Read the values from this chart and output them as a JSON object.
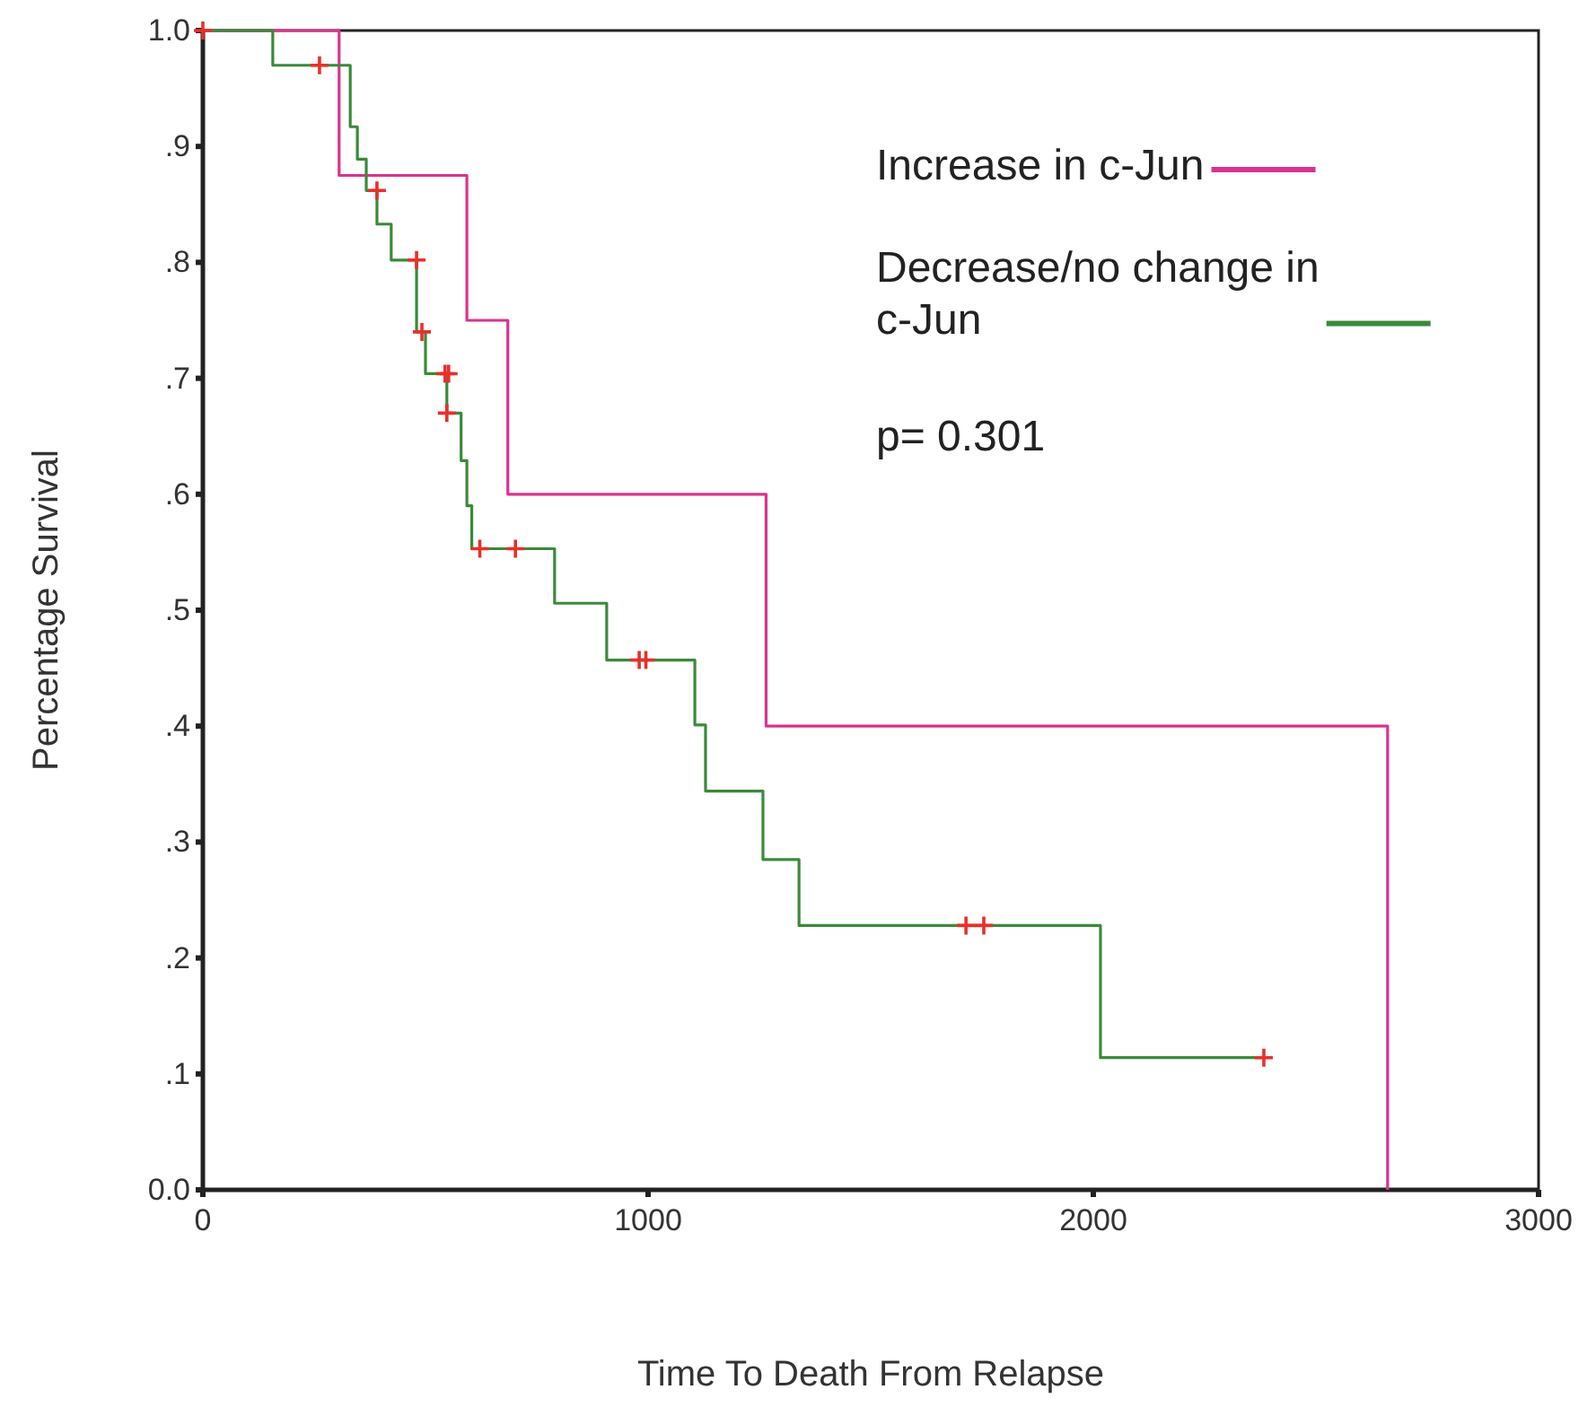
{
  "chart_data": {
    "type": "step",
    "xlabel": "Time To Death From Relapse",
    "ylabel": "Percentage Survival",
    "xlim": [
      0,
      3000
    ],
    "xticks": [
      0,
      1000,
      2000,
      3000
    ],
    "ylim": [
      0,
      1
    ],
    "yticks": [
      {
        "value": 0,
        "label": "0.0"
      },
      {
        "value": 0.1,
        "label": ".1"
      },
      {
        "value": 0.2,
        "label": ".2"
      },
      {
        "value": 0.3,
        "label": ".3"
      },
      {
        "value": 0.4,
        "label": ".4"
      },
      {
        "value": 0.5,
        "label": ".5"
      },
      {
        "value": 0.6,
        "label": ".6"
      },
      {
        "value": 0.7,
        "label": ".7"
      },
      {
        "value": 0.8,
        "label": ".8"
      },
      {
        "value": 0.9,
        "label": ".9"
      },
      {
        "value": 1,
        "label": "1.0"
      }
    ],
    "grid": false,
    "legend": "top right",
    "annotations": [
      "p= 0.301"
    ],
    "series": [
      {
        "name": "Increase in c-Jun",
        "color": "#d9338f",
        "x": [
          0,
          306,
          593,
          685,
          1265,
          2661
        ],
        "values": [
          1,
          0.875,
          0.75,
          0.6,
          0.4,
          0
        ]
      },
      {
        "name": "Decrease/no change in c-Jun",
        "color": "#3a8a3a",
        "x": [
          0,
          157,
          331,
          347,
          367,
          391,
          423,
          480,
          500,
          548,
          580,
          593,
          604,
          790,
          907,
          1105,
          1129,
          1258,
          1339,
          2016,
          2383
        ],
        "values": [
          1,
          0.97,
          0.917,
          0.889,
          0.862,
          0.833,
          0.802,
          0.74,
          0.704,
          0.67,
          0.629,
          0.59,
          0.553,
          0.506,
          0.457,
          0.401,
          0.344,
          0.285,
          0.228,
          0.114,
          0.114
        ]
      },
      {
        "color": "#e8302a",
        "type": "scatter",
        "marker": "cross",
        "x": [
          0,
          262,
          391,
          480,
          492,
          544,
          552,
          548,
          622,
          702,
          980,
          995,
          1714,
          1754,
          2383
        ],
        "values": [
          1,
          0.97,
          0.862,
          0.802,
          0.74,
          0.704,
          0.704,
          0.67,
          0.553,
          0.553,
          0.457,
          0.457,
          0.228,
          0.228,
          0.114
        ]
      }
    ]
  }
}
